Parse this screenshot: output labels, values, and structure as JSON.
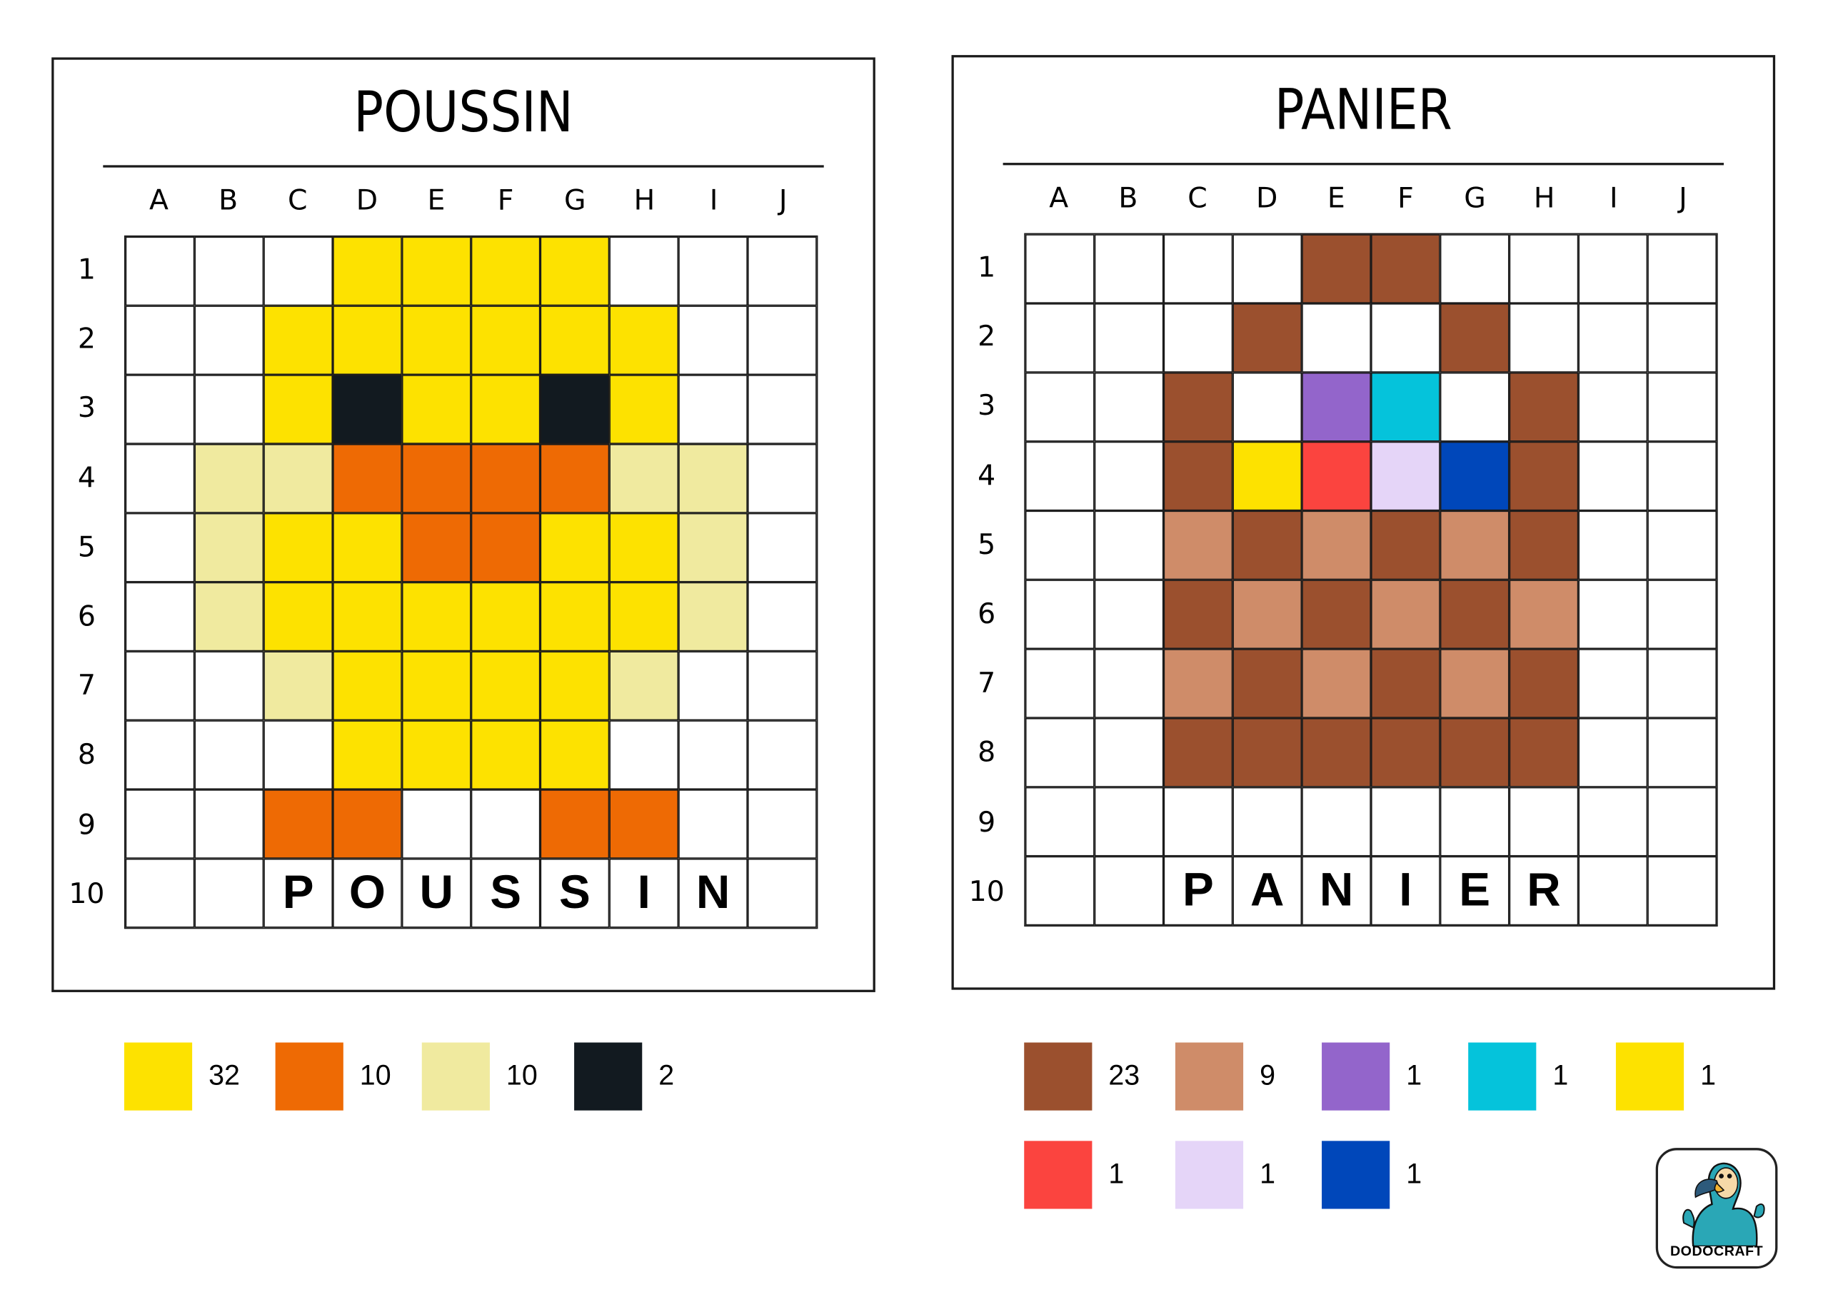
{
  "palette": {
    "W": "#ffffff",
    "Y": "#fde200",
    "O": "#ee6a04",
    "L": "#f0ea9f",
    "K": "#121a20",
    "B": "#9b502e",
    "T": "#cf8c69",
    "P": "#9365cb",
    "C": "#05c3db",
    "R": "#fb443f",
    "V": "#e5d5f8",
    "N": "#0047ba"
  },
  "columns": [
    "A",
    "B",
    "C",
    "D",
    "E",
    "F",
    "G",
    "H",
    "I",
    "J"
  ],
  "rows": [
    "1",
    "2",
    "3",
    "4",
    "5",
    "6",
    "7",
    "8",
    "9",
    "10"
  ],
  "puzzles": [
    {
      "title": "POUSSIN",
      "grid": [
        "WWWYYYYWWW",
        "WWYYYYYYWW",
        "WWYKYYKYWW",
        "WLLOOOOLLW",
        "WLYYOOYYLW",
        "WLYYYYYYLW",
        "WWLYYYYLWW",
        "WWWYYYYWWW",
        "WWOOWWOOWW",
        "WWWWWWWWWW"
      ],
      "word": [
        "",
        "",
        "P",
        "O",
        "U",
        "S",
        "S",
        "I",
        "N",
        ""
      ],
      "legend": [
        {
          "color": "Y",
          "count": "32"
        },
        {
          "color": "O",
          "count": "10"
        },
        {
          "color": "L",
          "count": "10"
        },
        {
          "color": "K",
          "count": "2"
        }
      ]
    },
    {
      "title": "PANIER",
      "grid": [
        "WWWWBBWWWW",
        "WWWBWWBWWW",
        "WWBWPCWBWW",
        "WWBYRVNBWW",
        "WWTBTBTBWW",
        "WWBTBTBTWW",
        "WWTBTBTBWW",
        "WWBBBBBBWW",
        "WWWWWWWWWW",
        "WWWWWWWWWW"
      ],
      "word": [
        "",
        "",
        "P",
        "A",
        "N",
        "I",
        "E",
        "R",
        "",
        ""
      ],
      "legend": [
        {
          "color": "B",
          "count": "23"
        },
        {
          "color": "T",
          "count": "9"
        },
        {
          "color": "P",
          "count": "1"
        },
        {
          "color": "C",
          "count": "1"
        },
        {
          "color": "Y",
          "count": "1"
        },
        {
          "color": "R",
          "count": "1"
        },
        {
          "color": "V",
          "count": "1"
        },
        {
          "color": "N",
          "count": "1"
        }
      ]
    }
  ],
  "logo": {
    "text": "DODOCRAFT",
    "icon": "dodo-mascot-icon"
  }
}
